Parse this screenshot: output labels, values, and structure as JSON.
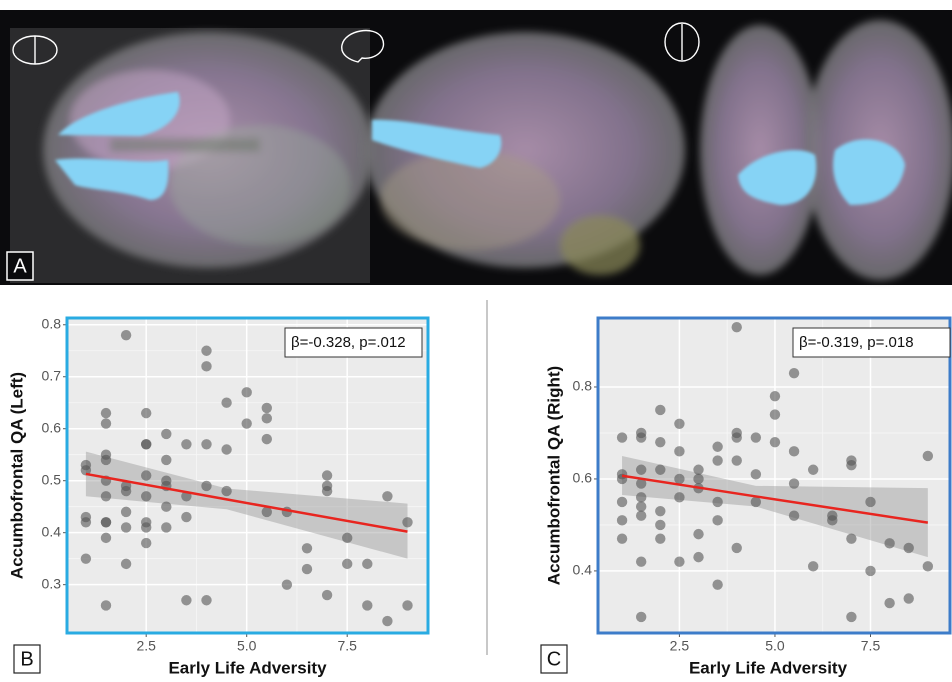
{
  "panel_a": {
    "label": "A"
  },
  "chart_data": [
    {
      "type": "scatter",
      "panel": "B",
      "ylabel": "Accumbofrontal QA (Left)",
      "xlabel": "Early Life Adversity",
      "annotation": "β=-0.328, p=.012",
      "frame_color": "#29abe2",
      "color": "#555555",
      "fit_color": "#e8251f",
      "xlim": [
        0.53,
        9.51
      ],
      "ylim": [
        0.207,
        0.813
      ],
      "xticks": [
        2.5,
        {
          "value": 5,
          "label": "5.0"
        },
        7.5
      ],
      "yticks": [
        0.3,
        0.4,
        0.5,
        0.6,
        0.7,
        0.8
      ],
      "grid": true,
      "x": [
        1,
        1,
        1,
        1,
        1,
        1.5,
        1.5,
        1.5,
        1.5,
        1.5,
        1.5,
        1.5,
        1.5,
        1.5,
        1.5,
        2,
        2,
        2,
        2,
        2,
        2,
        2.5,
        2.5,
        2.5,
        2.5,
        2.5,
        2.5,
        2.5,
        2.5,
        3,
        3,
        3,
        3,
        3,
        3,
        3.5,
        3.5,
        3.5,
        3.5,
        4,
        4,
        4,
        4,
        4,
        4.5,
        4.5,
        4.5,
        5,
        5,
        5.5,
        5.5,
        5.5,
        5.5,
        6,
        6,
        6.5,
        6.5,
        7,
        7,
        7,
        7,
        7.5,
        7.5,
        8,
        8,
        8.5,
        8.5,
        9,
        9
      ],
      "values": [
        0.53,
        0.52,
        0.43,
        0.42,
        0.35,
        0.63,
        0.61,
        0.55,
        0.54,
        0.5,
        0.47,
        0.42,
        0.42,
        0.39,
        0.26,
        0.78,
        0.49,
        0.48,
        0.44,
        0.41,
        0.34,
        0.63,
        0.57,
        0.57,
        0.51,
        0.47,
        0.42,
        0.41,
        0.38,
        0.59,
        0.54,
        0.5,
        0.49,
        0.45,
        0.41,
        0.57,
        0.47,
        0.43,
        0.27,
        0.75,
        0.72,
        0.57,
        0.49,
        0.27,
        0.65,
        0.56,
        0.48,
        0.67,
        0.61,
        0.64,
        0.62,
        0.58,
        0.44,
        0.44,
        0.3,
        0.37,
        0.33,
        0.51,
        0.49,
        0.48,
        0.28,
        0.39,
        0.34,
        0.34,
        0.26,
        0.47,
        0.23,
        0.42,
        0.26
      ],
      "fit": {
        "x": [
          1,
          4.5,
          9
        ],
        "values": [
          0.513,
          0.464,
          0.402
        ],
        "lower": [
          0.47,
          0.445,
          0.35
        ],
        "upper": [
          0.556,
          0.485,
          0.456
        ]
      }
    },
    {
      "type": "scatter",
      "panel": "C",
      "ylabel": "Accumbofrontal QA (Right)",
      "xlabel": "Early Life Adversity",
      "annotation": "β=-0.319, p=.018",
      "frame_color": "#3d7cc9",
      "color": "#555555",
      "fit_color": "#e8251f",
      "xlim": [
        0.37,
        9.58
      ],
      "ylim": [
        0.265,
        0.95
      ],
      "xticks": [
        2.5,
        {
          "value": 5,
          "label": "5.0"
        },
        7.5
      ],
      "yticks": [
        0.4,
        0.6,
        0.8
      ],
      "grid": true,
      "x": [
        1,
        1,
        1,
        1,
        1,
        1,
        1.5,
        1.5,
        1.5,
        1.5,
        1.5,
        1.5,
        1.5,
        1.5,
        1.5,
        2,
        2,
        2,
        2,
        2,
        2,
        2.5,
        2.5,
        2.5,
        2.5,
        2.5,
        3,
        3,
        3,
        3,
        3,
        3.5,
        3.5,
        3.5,
        3.5,
        3.5,
        4,
        4,
        4,
        4,
        4,
        4.5,
        4.5,
        4.5,
        5,
        5,
        5,
        5.5,
        5.5,
        5.5,
        5.5,
        6,
        6,
        6.5,
        6.5,
        7,
        7,
        7,
        7,
        7.5,
        7.5,
        8,
        8,
        8.5,
        8.5,
        9,
        9
      ],
      "values": [
        0.69,
        0.61,
        0.6,
        0.55,
        0.51,
        0.47,
        0.7,
        0.69,
        0.62,
        0.59,
        0.56,
        0.54,
        0.52,
        0.42,
        0.3,
        0.75,
        0.68,
        0.62,
        0.53,
        0.5,
        0.47,
        0.72,
        0.66,
        0.6,
        0.56,
        0.42,
        0.62,
        0.6,
        0.58,
        0.48,
        0.43,
        0.67,
        0.64,
        0.55,
        0.51,
        0.37,
        0.93,
        0.7,
        0.69,
        0.64,
        0.45,
        0.69,
        0.61,
        0.55,
        0.78,
        0.74,
        0.68,
        0.83,
        0.66,
        0.59,
        0.52,
        0.62,
        0.41,
        0.52,
        0.51,
        0.64,
        0.63,
        0.47,
        0.3,
        0.55,
        0.4,
        0.46,
        0.33,
        0.45,
        0.34,
        0.65,
        0.41
      ],
      "fit": {
        "x": [
          1,
          4.5,
          9
        ],
        "values": [
          0.607,
          0.562,
          0.505
        ],
        "lower": [
          0.565,
          0.54,
          0.43
        ],
        "upper": [
          0.65,
          0.585,
          0.58
        ]
      }
    }
  ]
}
